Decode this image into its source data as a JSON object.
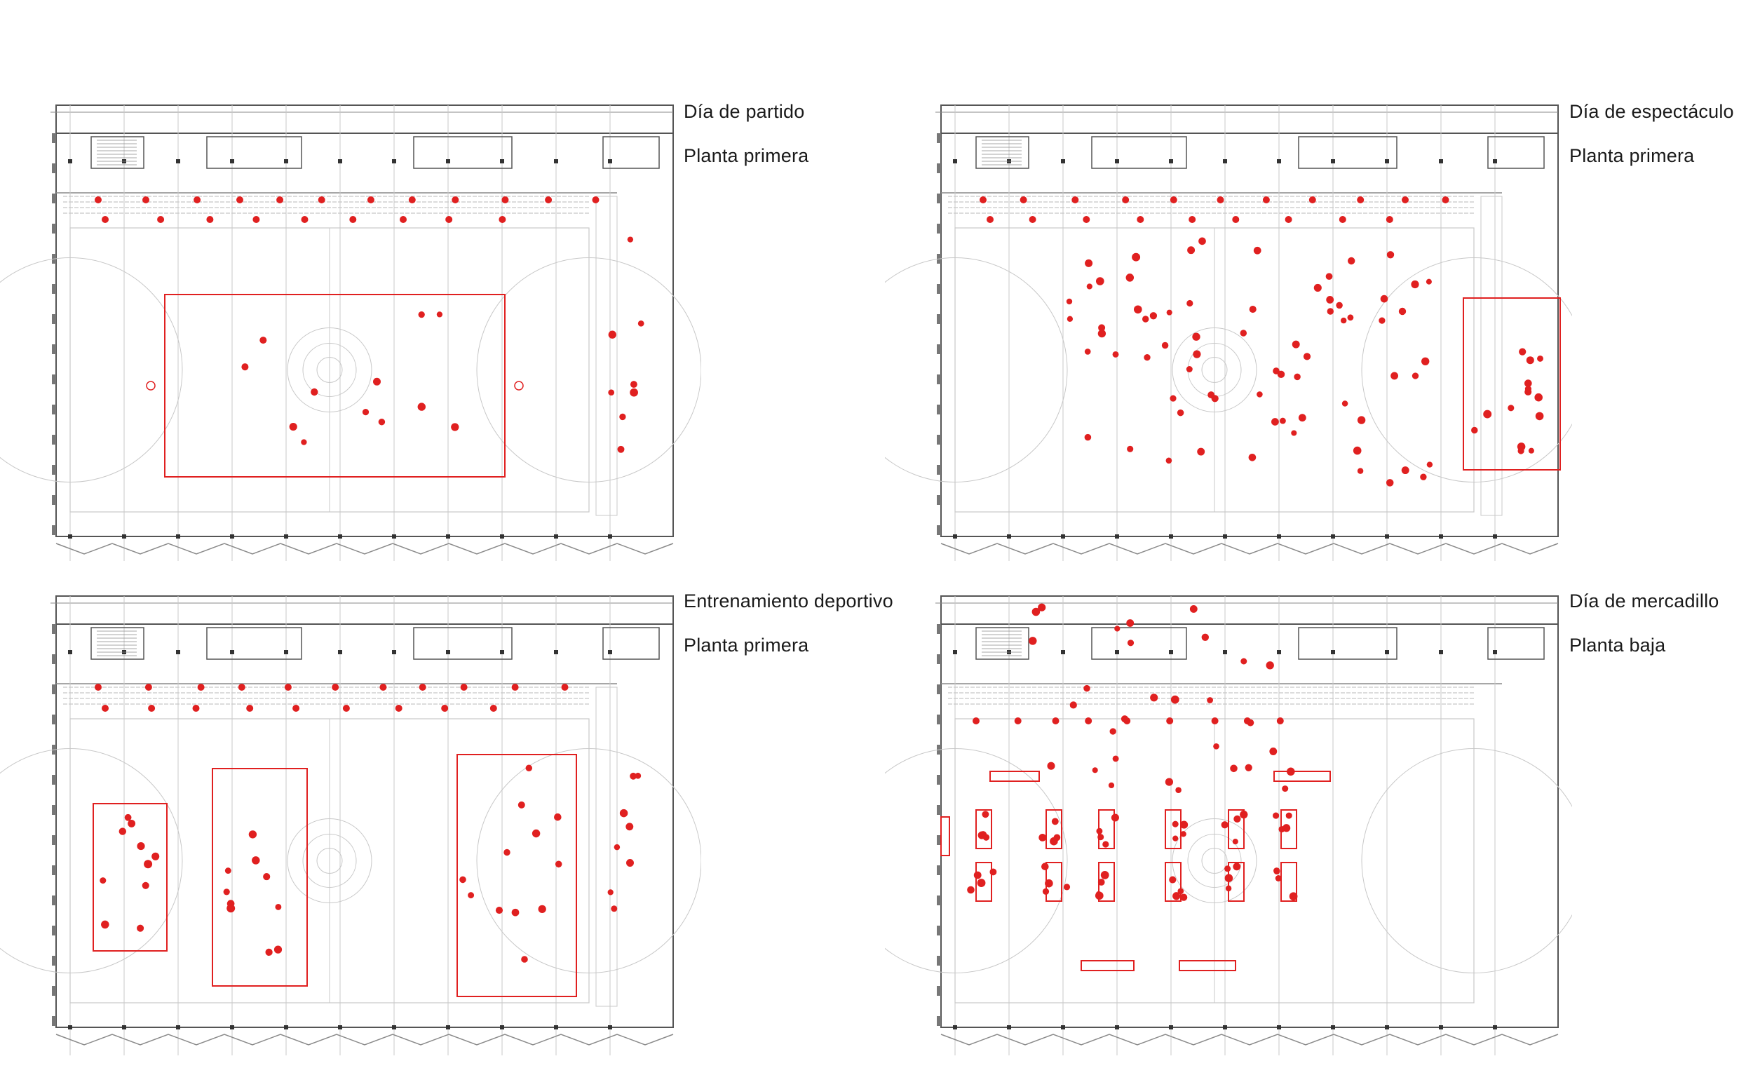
{
  "colors": {
    "accent": "#e02020",
    "line": "#555555",
    "faint": "#c8c8c8",
    "mid": "#8a8a8a"
  },
  "panels": [
    {
      "title": "Día de partido",
      "floor": "Planta primera",
      "layout": "partido"
    },
    {
      "title": "Día de espectáculo",
      "floor": "Planta primera",
      "layout": "espectaculo"
    },
    {
      "title": "Entrenamiento deportivo",
      "floor": "Planta primera",
      "layout": "entrenamiento"
    },
    {
      "title": "Día de mercadillo",
      "floor": "Planta baja",
      "layout": "mercadillo"
    }
  ]
}
